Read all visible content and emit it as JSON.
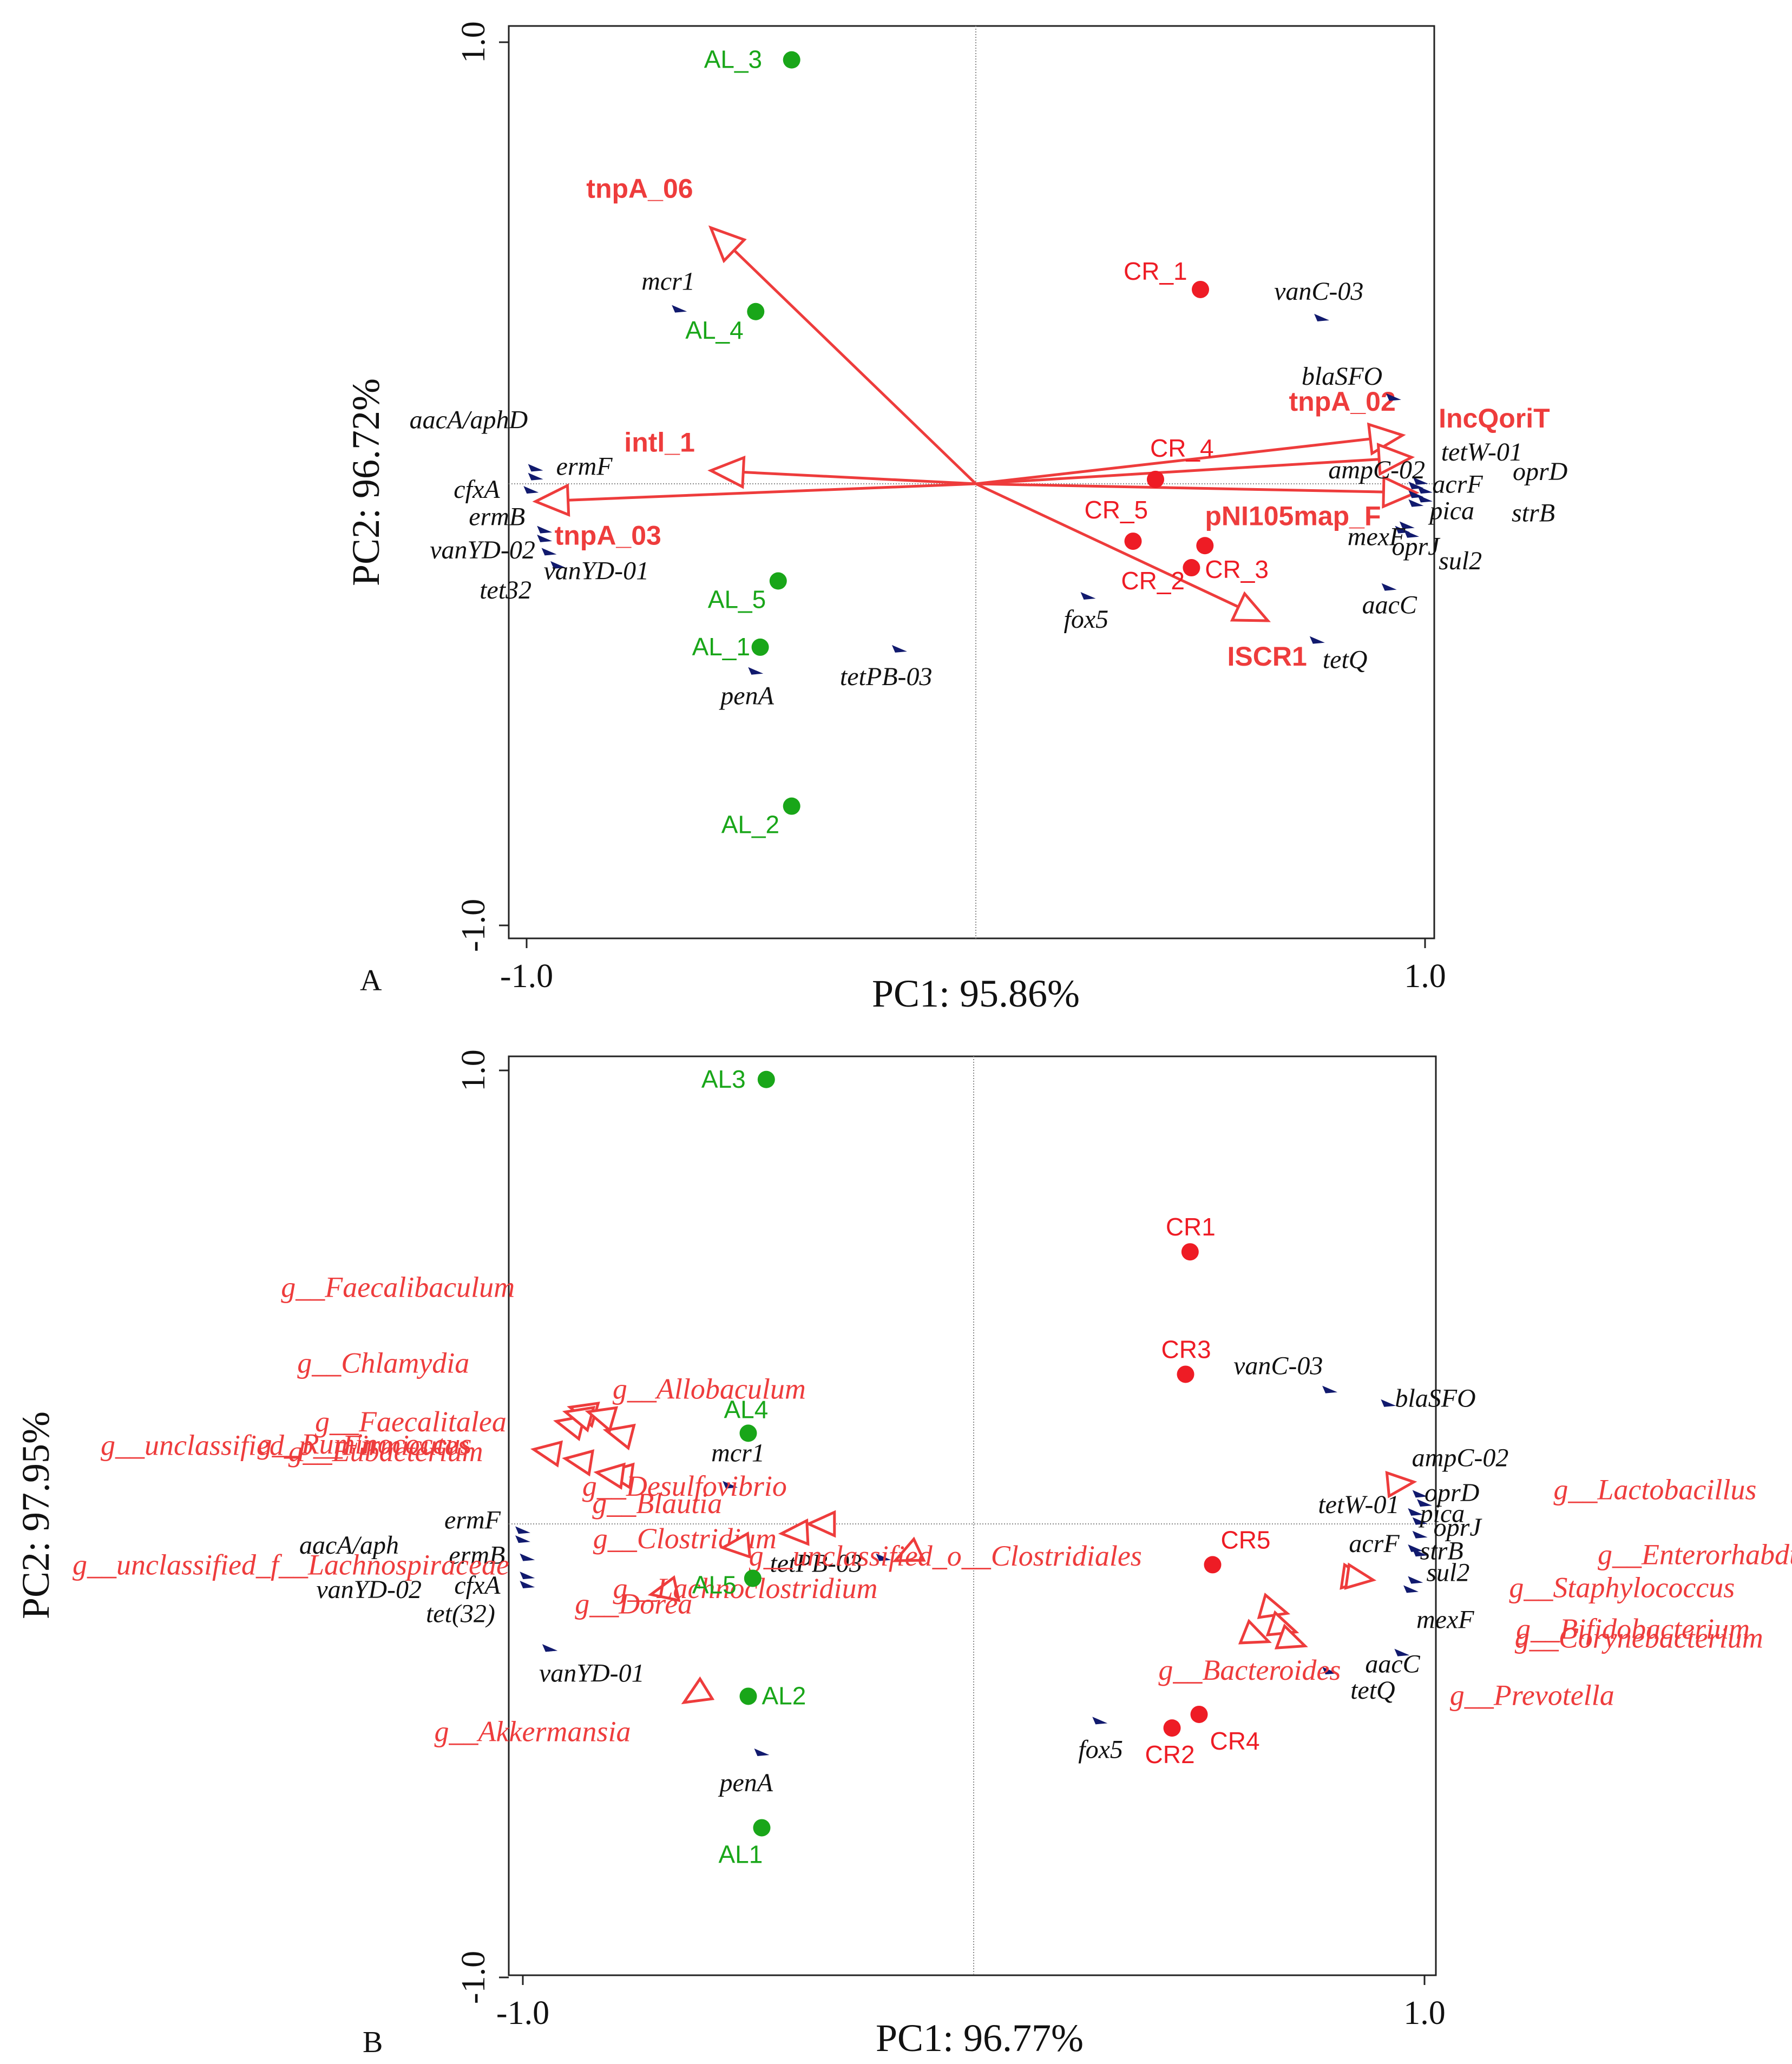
{
  "panels": [
    {
      "id": "A",
      "panel_label": "A",
      "chart_data": {
        "type": "scatter",
        "subtype": "PCA biplot",
        "xlabel": "PC1: 95.86%",
        "ylabel": "PC2: 96.72%",
        "xlim": [
          -1.05,
          1.05
        ],
        "ylim": [
          -1.05,
          1.05
        ],
        "x_ticks": [
          {
            "value": -1,
            "label": "-1.0"
          },
          {
            "value": 1,
            "label": "1.0"
          }
        ],
        "y_ticks": [
          {
            "value": 1,
            "label": "1.0"
          },
          {
            "value": -1,
            "label": "-1.0"
          }
        ],
        "samples": [
          {
            "label": "AL_3",
            "group": "AL",
            "x": -0.41,
            "y": 0.96
          },
          {
            "label": "AL_4",
            "group": "AL",
            "x": -0.49,
            "y": 0.39
          },
          {
            "label": "AL_5",
            "group": "AL",
            "x": -0.44,
            "y": -0.22
          },
          {
            "label": "AL_1",
            "group": "AL",
            "x": -0.48,
            "y": -0.37
          },
          {
            "label": "AL_2",
            "group": "AL",
            "x": -0.41,
            "y": -0.73
          },
          {
            "label": "CR_1",
            "group": "CR",
            "x": 0.5,
            "y": 0.44
          },
          {
            "label": "CR_4",
            "group": "CR",
            "x": 0.4,
            "y": 0.01
          },
          {
            "label": "CR_5",
            "group": "CR",
            "x": 0.35,
            "y": -0.13
          },
          {
            "label": "CR_3",
            "group": "CR",
            "x": 0.51,
            "y": -0.14
          },
          {
            "label": "CR_2",
            "group": "CR",
            "x": 0.48,
            "y": -0.19
          }
        ],
        "genes": [
          {
            "label": "mcr1",
            "x": -0.66,
            "y": 0.4
          },
          {
            "label": "vanC-03",
            "x": 0.77,
            "y": 0.38
          },
          {
            "label": "blaSFO",
            "x": 0.93,
            "y": 0.2
          },
          {
            "label": "aacA/aphD",
            "x": -0.98,
            "y": 0.04
          },
          {
            "label": "ermF",
            "x": -0.98,
            "y": 0.02
          },
          {
            "label": "cfxA",
            "x": -0.99,
            "y": -0.01
          },
          {
            "label": "ermB",
            "x": -0.96,
            "y": -0.1
          },
          {
            "label": "vanYD-02",
            "x": -0.96,
            "y": -0.12
          },
          {
            "label": "tet32",
            "x": -0.93,
            "y": -0.18
          },
          {
            "label": "vanYD-01",
            "x": -0.95,
            "y": -0.15
          },
          {
            "label": "tetPB-03",
            "x": -0.17,
            "y": -0.37
          },
          {
            "label": "penA",
            "x": -0.49,
            "y": -0.42
          },
          {
            "label": "fox5",
            "x": 0.25,
            "y": -0.25
          },
          {
            "label": "tetW-01",
            "x": 0.99,
            "y": 0.01
          },
          {
            "label": "ampC-02",
            "x": 0.98,
            "y": 0.0
          },
          {
            "label": "acrF",
            "x": 0.98,
            "y": -0.02
          },
          {
            "label": "oprD",
            "x": 1.0,
            "y": -0.01
          },
          {
            "label": "pica",
            "x": 0.98,
            "y": -0.04
          },
          {
            "label": "strB",
            "x": 1.0,
            "y": -0.03
          },
          {
            "label": "oprJ",
            "x": 0.95,
            "y": -0.1
          },
          {
            "label": "mexF",
            "x": 0.96,
            "y": -0.09
          },
          {
            "label": "sul2",
            "x": 0.97,
            "y": -0.11
          },
          {
            "label": "aacC",
            "x": 0.92,
            "y": -0.23
          },
          {
            "label": "tetQ",
            "x": 0.76,
            "y": -0.35
          }
        ],
        "vectors": [
          {
            "label": "tnpA_06",
            "x": -0.59,
            "y": 0.58
          },
          {
            "label": "intl_1",
            "x": -0.59,
            "y": 0.03
          },
          {
            "label": "tnpA_03",
            "x": -0.98,
            "y": -0.04
          },
          {
            "label": "tnpA_02",
            "x": 0.95,
            "y": 0.11
          },
          {
            "label": "IncQoriT",
            "x": 0.97,
            "y": 0.06
          },
          {
            "label": "pNI105map_F",
            "x": 0.98,
            "y": -0.02
          },
          {
            "label": "ISCR1",
            "x": 0.65,
            "y": -0.31
          }
        ]
      }
    },
    {
      "id": "B",
      "panel_label": "B",
      "chart_data": {
        "type": "scatter",
        "subtype": "PCA biplot",
        "xlabel": "PC1: 96.77%",
        "ylabel": "PC2: 97.95%",
        "xlim": [
          -1.05,
          1.05
        ],
        "ylim": [
          -1.05,
          1.05
        ],
        "x_ticks": [
          {
            "value": -1,
            "label": "-1.0"
          },
          {
            "value": 1,
            "label": "1.0"
          }
        ],
        "y_ticks": [
          {
            "value": 1,
            "label": "1.0"
          },
          {
            "value": -1,
            "label": "-1.0"
          }
        ],
        "samples": [
          {
            "label": "AL3",
            "group": "AL",
            "x": -0.46,
            "y": 0.98
          },
          {
            "label": "AL4",
            "group": "AL",
            "x": -0.5,
            "y": 0.2
          },
          {
            "label": "AL5",
            "group": "AL",
            "x": -0.49,
            "y": -0.12
          },
          {
            "label": "AL2",
            "group": "AL",
            "x": -0.5,
            "y": -0.38
          },
          {
            "label": "AL1",
            "group": "AL",
            "x": -0.47,
            "y": -0.67
          },
          {
            "label": "CR1",
            "group": "CR",
            "x": 0.48,
            "y": 0.6
          },
          {
            "label": "CR3",
            "group": "CR",
            "x": 0.47,
            "y": 0.33
          },
          {
            "label": "CR5",
            "group": "CR",
            "x": 0.53,
            "y": -0.09
          },
          {
            "label": "CR2",
            "group": "CR",
            "x": 0.44,
            "y": -0.45
          },
          {
            "label": "CR4",
            "group": "CR",
            "x": 0.5,
            "y": -0.42
          }
        ],
        "genes": [
          {
            "label": "vanC-03",
            "x": 0.79,
            "y": 0.3
          },
          {
            "label": "blaSFO",
            "x": 0.92,
            "y": 0.27
          },
          {
            "label": "mcr1",
            "x": -0.54,
            "y": 0.09
          },
          {
            "label": "aacA/aph",
            "x": -1.0,
            "y": -0.03
          },
          {
            "label": "ermF",
            "x": -1.0,
            "y": -0.01
          },
          {
            "label": "ermB",
            "x": -0.99,
            "y": -0.07
          },
          {
            "label": "vanYD-02",
            "x": -0.99,
            "y": -0.11
          },
          {
            "label": "cfxA",
            "x": -0.99,
            "y": -0.13
          },
          {
            "label": "tet(32)",
            "x": -0.94,
            "y": -0.27
          },
          {
            "label": "vanYD-01",
            "x": -0.94,
            "y": -0.27
          },
          {
            "label": "tetPB-03",
            "x": -0.2,
            "y": -0.07
          },
          {
            "label": "penA",
            "x": -0.47,
            "y": -0.5
          },
          {
            "label": "fox5",
            "x": 0.28,
            "y": -0.43
          },
          {
            "label": "tetQ",
            "x": 0.79,
            "y": -0.32
          },
          {
            "label": "ampC-02",
            "x": 0.99,
            "y": 0.07
          },
          {
            "label": "oprD",
            "x": 1.0,
            "y": 0.05
          },
          {
            "label": "tetW-01",
            "x": 0.98,
            "y": 0.03
          },
          {
            "label": "pica",
            "x": 0.99,
            "y": 0.01
          },
          {
            "label": "oprJ",
            "x": 0.99,
            "y": -0.02
          },
          {
            "label": "acrF",
            "x": 0.98,
            "y": -0.05
          },
          {
            "label": "strB",
            "x": 0.99,
            "y": -0.06
          },
          {
            "label": "sul2",
            "x": 0.98,
            "y": -0.12
          },
          {
            "label": "mexF",
            "x": 0.97,
            "y": -0.14
          },
          {
            "label": "aacC",
            "x": 0.95,
            "y": -0.28
          }
        ],
        "genera": [
          {
            "label": "g__Faecalibaculum",
            "x": -0.87,
            "y": 0.25
          },
          {
            "label": "g__Chlamydia",
            "x": -0.9,
            "y": 0.22
          },
          {
            "label": "g__Allobaculum",
            "x": -0.79,
            "y": 0.2
          },
          {
            "label": "g__Faecalitalea",
            "x": -0.88,
            "y": 0.24
          },
          {
            "label": "g__Ruminococcus",
            "x": -0.83,
            "y": 0.24
          },
          {
            "label": "g__Eubacterium",
            "x": -0.95,
            "y": 0.16
          },
          {
            "label": "g__Desulfovibrio",
            "x": -0.79,
            "y": 0.11
          },
          {
            "label": "g__unclassified_p__Firmicutes",
            "x": -0.88,
            "y": 0.14
          },
          {
            "label": "g__Blautia",
            "x": -0.81,
            "y": 0.11
          },
          {
            "label": "g__Clostridium",
            "x": -0.34,
            "y": 0.0
          },
          {
            "label": "g__Dorea",
            "x": -0.69,
            "y": -0.15
          },
          {
            "label": "g__Lachnoclostridium",
            "x": -0.53,
            "y": -0.05
          },
          {
            "label": "g__unclassified_f__Lachnospiraceae",
            "x": -0.15,
            "y": -0.07
          },
          {
            "label": "g__unclassified_o__Clostridiales",
            "x": -0.4,
            "y": -0.02
          },
          {
            "label": "g__Akkermansia",
            "x": -0.62,
            "y": -0.38
          },
          {
            "label": "g__Lactobacillus",
            "x": 0.95,
            "y": 0.09
          },
          {
            "label": "g__Enterorhabdus",
            "x": 0.85,
            "y": -0.12
          },
          {
            "label": "g__Staphylococcus",
            "x": 0.86,
            "y": -0.12
          },
          {
            "label": "g__Bifidobacterium",
            "x": 0.67,
            "y": -0.19
          },
          {
            "label": "g__Corynebacterium",
            "x": 0.69,
            "y": -0.23
          },
          {
            "label": "g__Bacteroides",
            "x": 0.71,
            "y": -0.26
          },
          {
            "label": "g__Prevotella",
            "x": 0.63,
            "y": -0.25
          }
        ]
      }
    }
  ],
  "colors": {
    "AL": "#19a619",
    "CR": "#ee1c25",
    "gene": "#111a6e",
    "vector": "#ee3c3c",
    "genus": "#ee3c3c",
    "text": "#111111"
  }
}
